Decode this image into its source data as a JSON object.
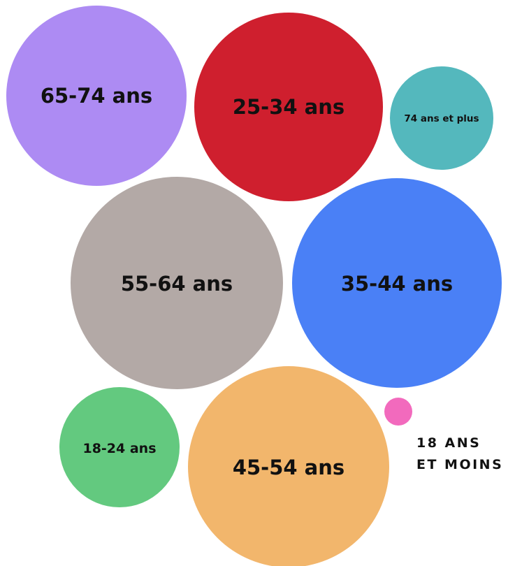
{
  "chart_data": {
    "type": "bubble",
    "title": "",
    "series": [
      {
        "label": "65-74 ans",
        "color": "#AD8BF3"
      },
      {
        "label": "25-34 ans",
        "color": "#CF1F2E"
      },
      {
        "label": "74 ans et plus",
        "color": "#54B8BD"
      },
      {
        "label": "55-64 ans",
        "color": "#B3A9A6"
      },
      {
        "label": "35-44 ans",
        "color": "#4A80F6"
      },
      {
        "label": "18-24 ans",
        "color": "#63C97F"
      },
      {
        "label": "45-54 ans",
        "color": "#F2B66C"
      },
      {
        "label_lines": [
          "18 ANS",
          "ET MOINS"
        ],
        "color": "#F26ABD"
      }
    ]
  }
}
